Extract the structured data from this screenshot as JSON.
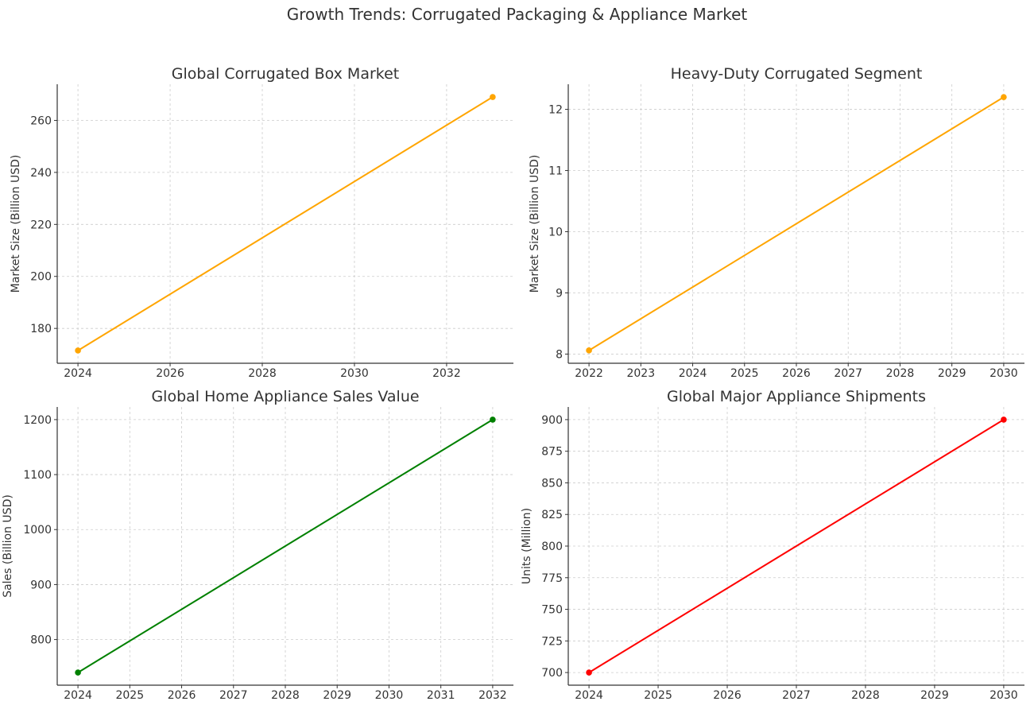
{
  "figure": {
    "title": "Growth Trends: Corrugated Packaging & Appliance Market"
  },
  "chart_data": [
    {
      "type": "line",
      "title": "Global Corrugated Box Market",
      "xlabel": "",
      "ylabel": "Market Size (Billion USD)",
      "x": [
        2024,
        2033
      ],
      "y": [
        171.5,
        269
      ],
      "xlim": [
        2023.55,
        2033.45
      ],
      "ylim": [
        166.6,
        273.9
      ],
      "xticks": [
        2024,
        2026,
        2028,
        2030,
        2032
      ],
      "yticks": [
        180,
        200,
        220,
        240,
        260
      ],
      "color": "#FFA500",
      "grid": true,
      "legend": "none"
    },
    {
      "type": "line",
      "title": "Heavy-Duty Corrugated Segment",
      "xlabel": "",
      "ylabel": "Market Size (Billion USD)",
      "x": [
        2022,
        2030
      ],
      "y": [
        8.06,
        12.2
      ],
      "xlim": [
        2021.6,
        2030.4
      ],
      "ylim": [
        7.85,
        12.41
      ],
      "xticks": [
        2022,
        2023,
        2024,
        2025,
        2026,
        2027,
        2028,
        2029,
        2030
      ],
      "yticks": [
        8,
        9,
        10,
        11,
        12
      ],
      "color": "#FFA500",
      "grid": true,
      "legend": "none"
    },
    {
      "type": "line",
      "title": "Global Home Appliance Sales Value",
      "xlabel": "",
      "ylabel": "Sales (Billion USD)",
      "x": [
        2024,
        2032
      ],
      "y": [
        740,
        1200
      ],
      "xlim": [
        2023.6,
        2032.4
      ],
      "ylim": [
        717,
        1223
      ],
      "xticks": [
        2024,
        2025,
        2026,
        2027,
        2028,
        2029,
        2030,
        2031,
        2032
      ],
      "yticks": [
        800,
        900,
        1000,
        1100,
        1200
      ],
      "color": "#008000",
      "grid": true,
      "legend": "none"
    },
    {
      "type": "line",
      "title": "Global Major Appliance Shipments",
      "xlabel": "",
      "ylabel": "Units (Million)",
      "x": [
        2024,
        2030
      ],
      "y": [
        700,
        900
      ],
      "xlim": [
        2023.7,
        2030.3
      ],
      "ylim": [
        690,
        910
      ],
      "xticks": [
        2024,
        2025,
        2026,
        2027,
        2028,
        2029,
        2030
      ],
      "yticks": [
        700,
        725,
        750,
        775,
        800,
        825,
        850,
        875,
        900
      ],
      "color": "#FF0000",
      "grid": true,
      "legend": "none"
    }
  ]
}
